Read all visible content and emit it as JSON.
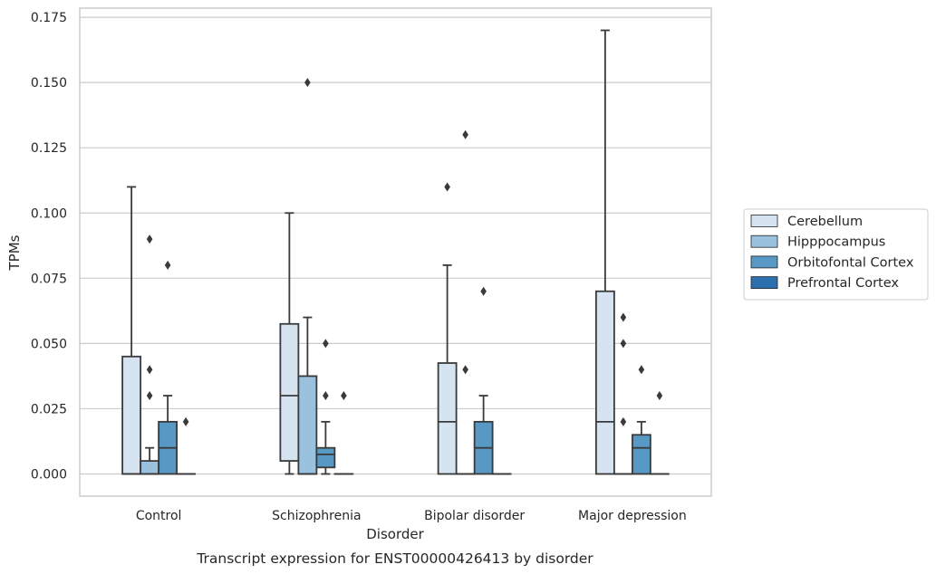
{
  "chart_data": {
    "type": "box",
    "title": "",
    "caption": "Transcript expression for ENST00000426413 by disorder",
    "xlabel": "Disorder",
    "ylabel": "TPMs",
    "ylim": [
      -0.0085,
      0.1785
    ],
    "yticks": [
      "0.000",
      "0.025",
      "0.050",
      "0.075",
      "0.100",
      "0.125",
      "0.150",
      "0.175"
    ],
    "ytick_values": [
      0,
      0.025,
      0.05,
      0.075,
      0.1,
      0.125,
      0.15,
      0.175
    ],
    "grid": true,
    "legend_position": "right",
    "categories": [
      "Control",
      "Schizophrenia",
      "Bipolar disorder",
      "Major depression"
    ],
    "series": [
      {
        "name": "Cerebellum",
        "color": "#d6e4f2",
        "boxes": [
          {
            "q1": 0,
            "median": 0,
            "q3": 0.045,
            "whislo": 0,
            "whishi": 0.11,
            "fliers": []
          },
          {
            "q1": 0.005,
            "median": 0.03,
            "q3": 0.0575,
            "whislo": 0,
            "whishi": 0.1,
            "fliers": []
          },
          {
            "q1": 0,
            "median": 0.02,
            "q3": 0.0425,
            "whislo": 0,
            "whishi": 0.08,
            "fliers": [
              0.11
            ]
          },
          {
            "q1": 0,
            "median": 0.02,
            "q3": 0.07,
            "whislo": 0,
            "whishi": 0.17,
            "fliers": []
          }
        ]
      },
      {
        "name": "Hipppocampus",
        "color": "#9ac1de",
        "boxes": [
          {
            "q1": 0,
            "median": 0,
            "q3": 0.005,
            "whislo": 0,
            "whishi": 0.01,
            "fliers": [
              0.03,
              0.04,
              0.09
            ]
          },
          {
            "q1": 0,
            "median": 0,
            "q3": 0.0375,
            "whislo": 0,
            "whishi": 0.06,
            "fliers": [
              0.15
            ]
          },
          {
            "q1": 0,
            "median": 0,
            "q3": 0,
            "whislo": 0,
            "whishi": 0,
            "fliers": [
              0.04,
              0.13
            ]
          },
          {
            "q1": 0,
            "median": 0,
            "q3": 0,
            "whislo": 0,
            "whishi": 0,
            "fliers": [
              0.02,
              0.05,
              0.06
            ]
          }
        ]
      },
      {
        "name": "Orbitofontal Cortex",
        "color": "#5898c5",
        "boxes": [
          {
            "q1": 0,
            "median": 0.01,
            "q3": 0.02,
            "whislo": 0,
            "whishi": 0.03,
            "fliers": [
              0.08
            ]
          },
          {
            "q1": 0.0025,
            "median": 0.0075,
            "q3": 0.01,
            "whislo": 0,
            "whishi": 0.02,
            "fliers": [
              0.03,
              0.05
            ]
          },
          {
            "q1": 0,
            "median": 0.01,
            "q3": 0.02,
            "whislo": 0,
            "whishi": 0.03,
            "fliers": [
              0.07
            ]
          },
          {
            "q1": 0,
            "median": 0.01,
            "q3": 0.015,
            "whislo": 0,
            "whishi": 0.02,
            "fliers": [
              0.04
            ]
          }
        ]
      },
      {
        "name": "Prefrontal Cortex",
        "color": "#2c6fae",
        "boxes": [
          {
            "q1": 0,
            "median": 0,
            "q3": 0,
            "whislo": 0,
            "whishi": 0,
            "fliers": [
              0.02
            ]
          },
          {
            "q1": 0,
            "median": 0,
            "q3": 0,
            "whislo": 0,
            "whishi": 0,
            "fliers": [
              0.03
            ]
          },
          {
            "q1": 0,
            "median": 0,
            "q3": 0,
            "whislo": 0,
            "whishi": 0,
            "fliers": []
          },
          {
            "q1": 0,
            "median": 0,
            "q3": 0,
            "whislo": 0,
            "whishi": 0,
            "fliers": [
              0.03
            ]
          }
        ]
      }
    ]
  }
}
